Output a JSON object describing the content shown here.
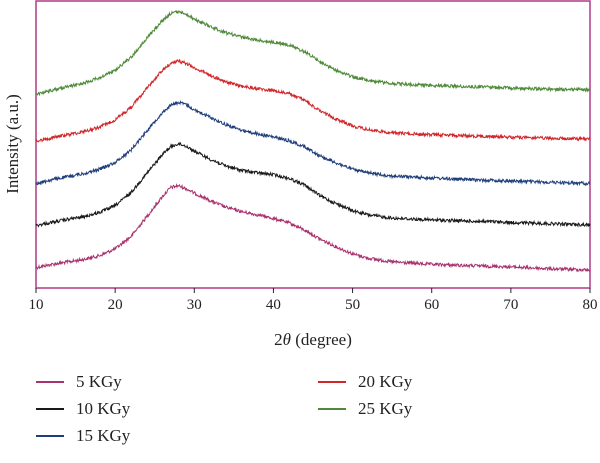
{
  "chart_data": {
    "type": "line",
    "xlabel_prefix": "2",
    "xlabel_symbol": "θ",
    "xlabel_suffix": " (degree)",
    "ylabel": "Intensity (a.u.)",
    "xlim": [
      10,
      80
    ],
    "x_ticks": [
      "10",
      "20",
      "30",
      "40",
      "50",
      "60",
      "70",
      "80"
    ],
    "y_ticks_shown": false,
    "grid": false,
    "legend_position": "bottom",
    "x": [
      10,
      12,
      14,
      16,
      18,
      20,
      22,
      24,
      26,
      27,
      28,
      29,
      30,
      32,
      34,
      36,
      38,
      40,
      42,
      44,
      46,
      48,
      50,
      52,
      55,
      60,
      65,
      70,
      75,
      80
    ],
    "series": [
      {
        "name": "5 KGy",
        "color": "#a8326e",
        "values": [
          0.4,
          0.9,
          1.3,
          1.7,
          2.3,
          3.4,
          5.4,
          8.6,
          11.9,
          13.3,
          13.6,
          13.1,
          12.4,
          11.2,
          10.1,
          9.4,
          8.9,
          8.3,
          7.6,
          6.4,
          4.9,
          3.7,
          2.6,
          1.9,
          1.3,
          0.9,
          0.7,
          0.5,
          0.2,
          0.0
        ]
      },
      {
        "name": "10 KGy",
        "color": "#1a1a1a",
        "values": [
          0.4,
          0.9,
          1.4,
          1.8,
          2.5,
          3.6,
          5.7,
          8.8,
          11.9,
          13.1,
          13.6,
          13.2,
          12.4,
          11.1,
          10.0,
          9.3,
          8.9,
          8.6,
          8.0,
          6.9,
          5.1,
          3.9,
          2.8,
          2.1,
          1.6,
          1.3,
          1.1,
          0.9,
          0.7,
          0.5
        ]
      },
      {
        "name": "15 KGy",
        "color": "#1f3e7a",
        "values": [
          0.4,
          1.0,
          1.5,
          2.0,
          2.7,
          3.8,
          5.8,
          8.9,
          11.9,
          13.0,
          13.5,
          13.1,
          12.3,
          11.1,
          9.9,
          9.0,
          8.4,
          7.9,
          7.3,
          6.3,
          4.8,
          3.7,
          2.7,
          2.1,
          1.6,
          1.3,
          1.0,
          0.8,
          0.6,
          0.4
        ]
      },
      {
        "name": "20 KGy",
        "color": "#d0262a",
        "values": [
          0.4,
          1.0,
          1.5,
          2.0,
          2.7,
          3.9,
          5.9,
          9.0,
          11.9,
          13.0,
          13.4,
          13.0,
          12.3,
          11.1,
          10.0,
          9.3,
          8.9,
          8.6,
          8.1,
          7.0,
          5.2,
          4.0,
          2.9,
          2.3,
          1.8,
          1.5,
          1.3,
          1.1,
          0.9,
          0.8
        ]
      },
      {
        "name": "25 KGy",
        "color": "#4f8a3a",
        "values": [
          0.3,
          0.9,
          1.5,
          2.1,
          2.9,
          4.2,
          6.2,
          9.3,
          12.2,
          13.3,
          13.6,
          13.2,
          12.4,
          11.2,
          10.2,
          9.5,
          9.0,
          8.7,
          8.2,
          7.1,
          5.4,
          4.1,
          3.1,
          2.5,
          2.0,
          1.7,
          1.5,
          1.3,
          1.1,
          1.0
        ]
      }
    ]
  }
}
